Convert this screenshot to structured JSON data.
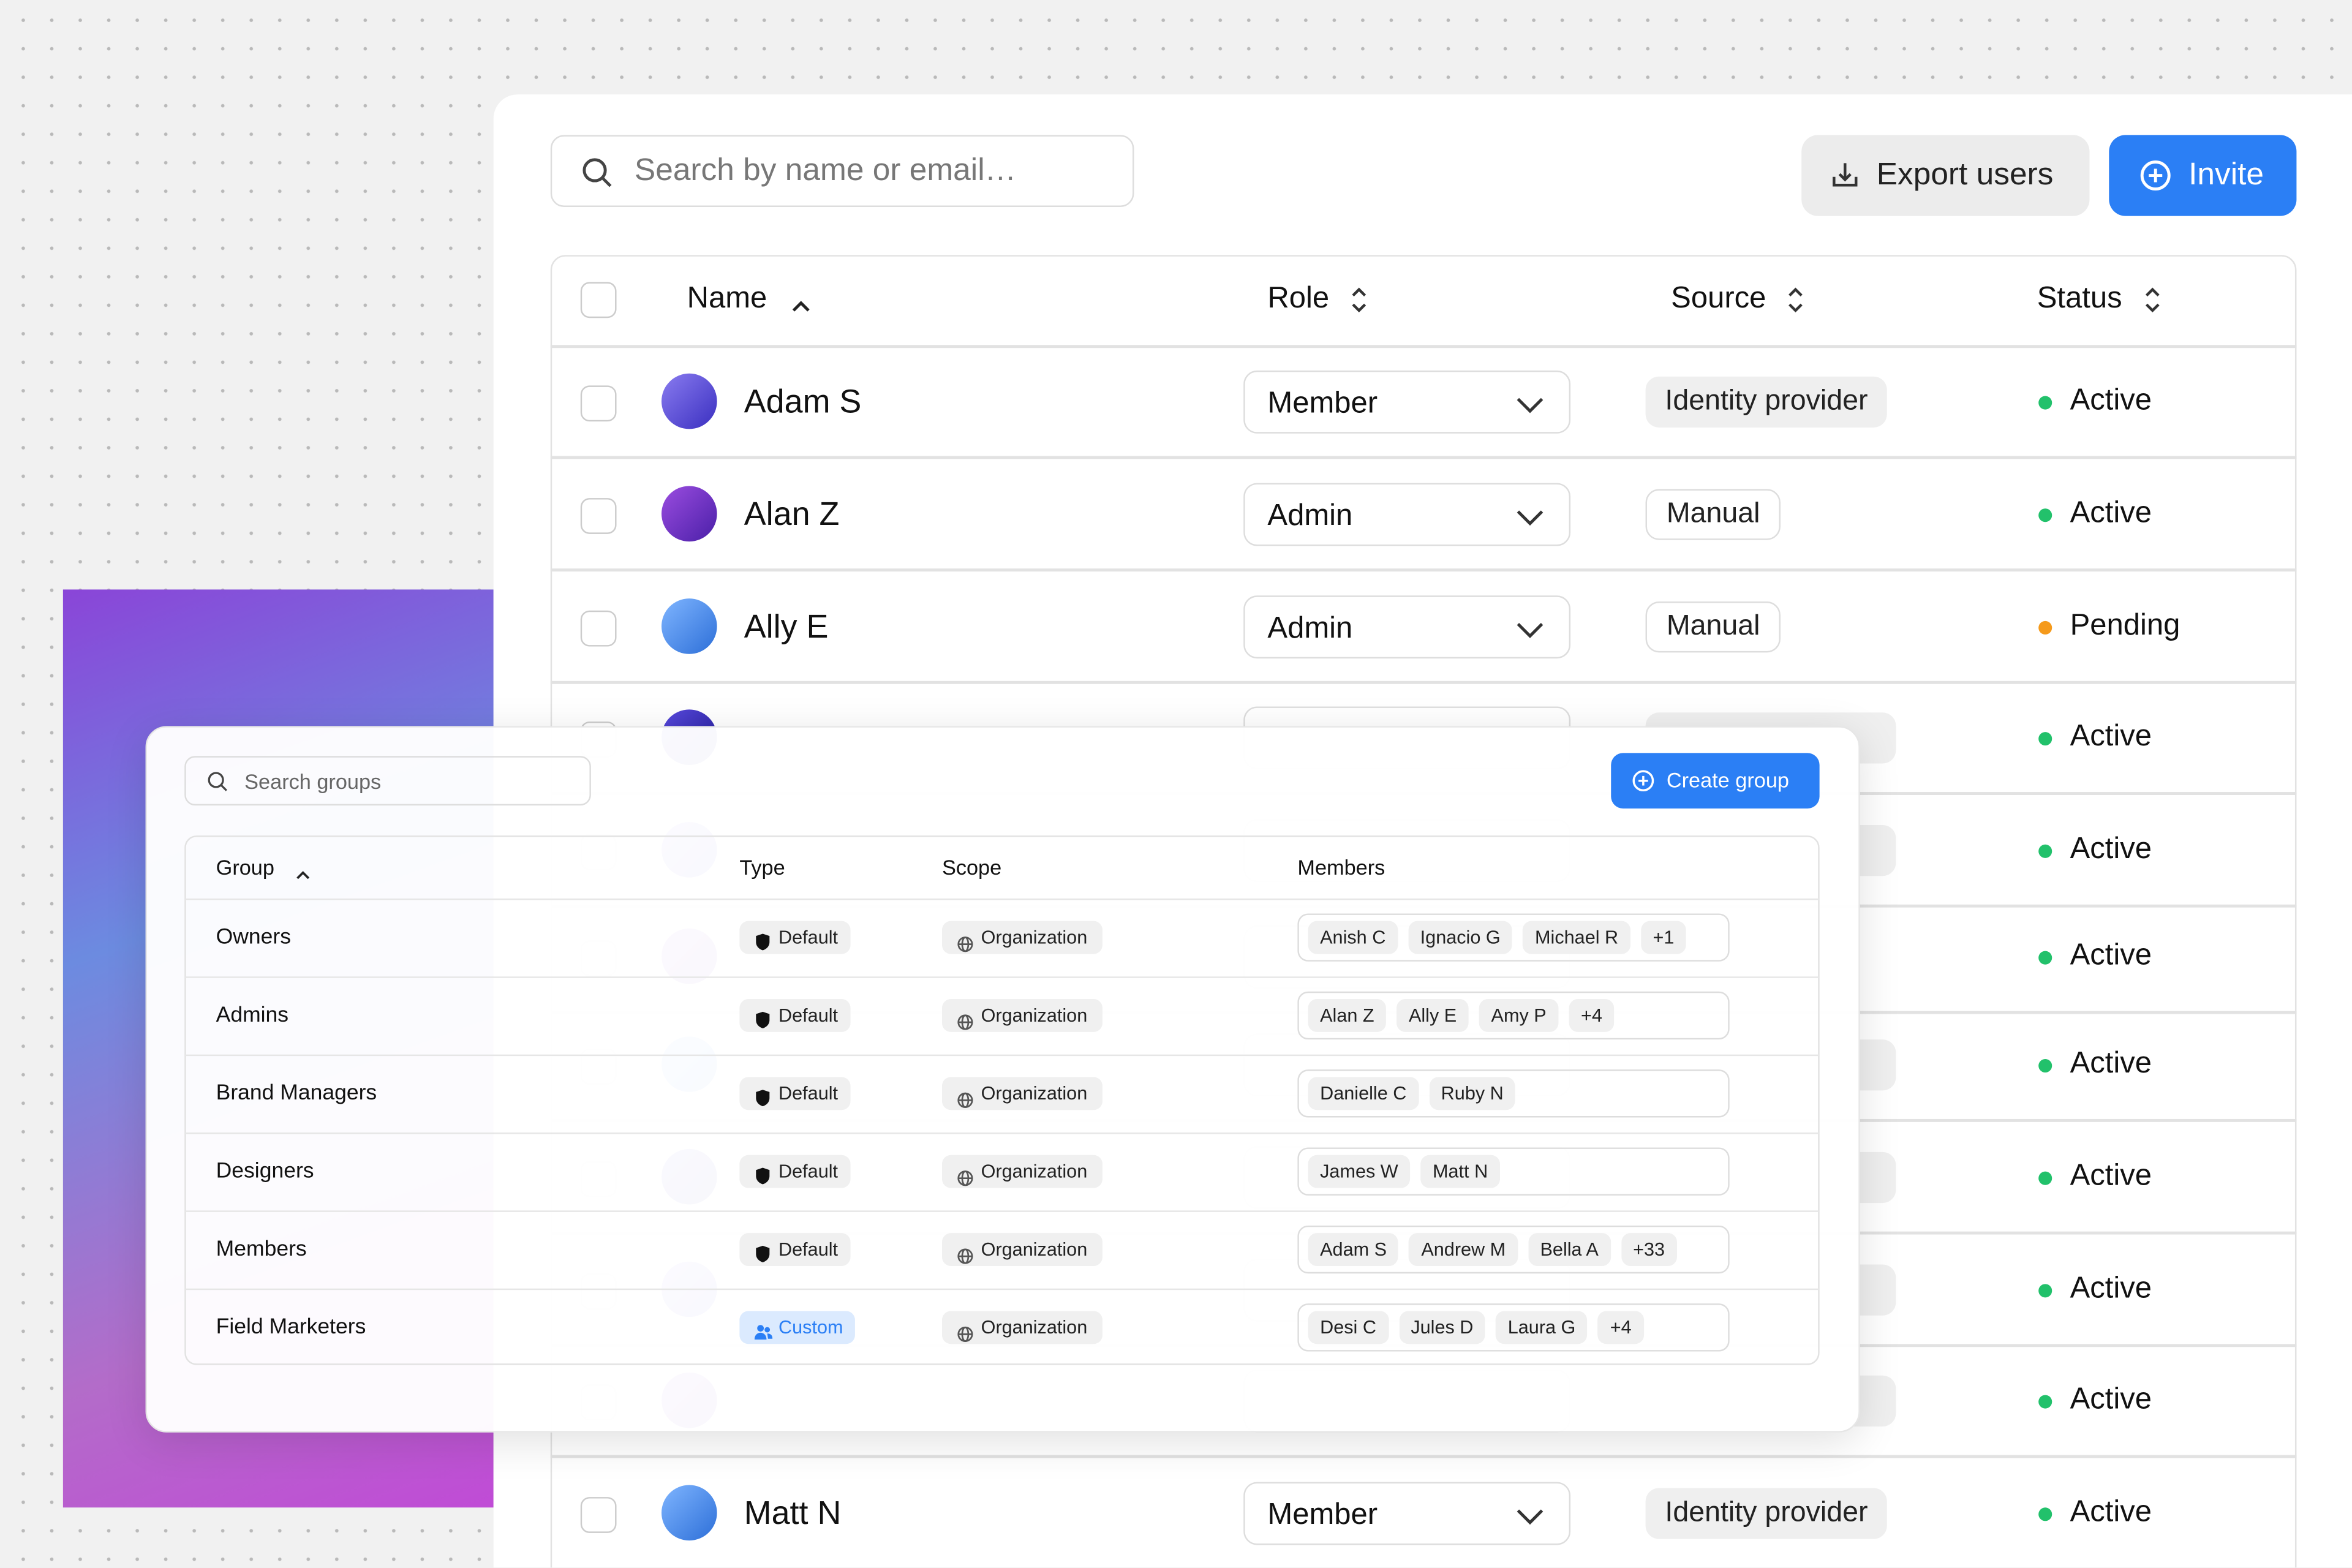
{
  "users_panel": {
    "search_placeholder": "Search by name or email…",
    "export_button": "Export users",
    "invite_button": "Invite",
    "columns": [
      "Name",
      "Role",
      "Source",
      "Status"
    ],
    "rows": [
      {
        "name": "Adam S",
        "role": "Member",
        "source": "Identity provider",
        "status": "Active"
      },
      {
        "name": "Alan Z",
        "role": "Admin",
        "source": "Manual",
        "status": "Active"
      },
      {
        "name": "Ally E",
        "role": "Admin",
        "source": "Manual",
        "status": "Pending"
      },
      {
        "status": "Active"
      },
      {
        "status": "Active"
      },
      {
        "status": "Active"
      },
      {
        "status": "Active"
      },
      {
        "status": "Active"
      },
      {
        "status": "Active"
      },
      {
        "status": "Active"
      },
      {
        "name": "Matt N",
        "role": "Member",
        "source": "Identity provider",
        "status": "Active"
      }
    ]
  },
  "groups_panel": {
    "search_placeholder": "Search groups",
    "create_button": "Create group",
    "columns": [
      "Group",
      "Type",
      "Scope",
      "Members"
    ],
    "rows": [
      {
        "group": "Owners",
        "type": "Default",
        "scope": "Organization",
        "members": [
          "Anish C",
          "Ignacio G",
          "Michael R",
          "+1"
        ]
      },
      {
        "group": "Admins",
        "type": "Default",
        "scope": "Organization",
        "members": [
          "Alan Z",
          "Ally E",
          "Amy P",
          "+4"
        ]
      },
      {
        "group": "Brand Managers",
        "type": "Default",
        "scope": "Organization",
        "members": [
          "Danielle C",
          "Ruby N"
        ]
      },
      {
        "group": "Designers",
        "type": "Default",
        "scope": "Organization",
        "members": [
          "James W",
          "Matt N"
        ]
      },
      {
        "group": "Members",
        "type": "Default",
        "scope": "Organization",
        "members": [
          "Adam S",
          "Andrew M",
          "Bella A",
          "+33"
        ]
      },
      {
        "group": "Field Marketers",
        "type": "Custom",
        "scope": "Organization",
        "members": [
          "Desi C",
          "Jules D",
          "Laura G",
          "+4"
        ]
      }
    ]
  }
}
